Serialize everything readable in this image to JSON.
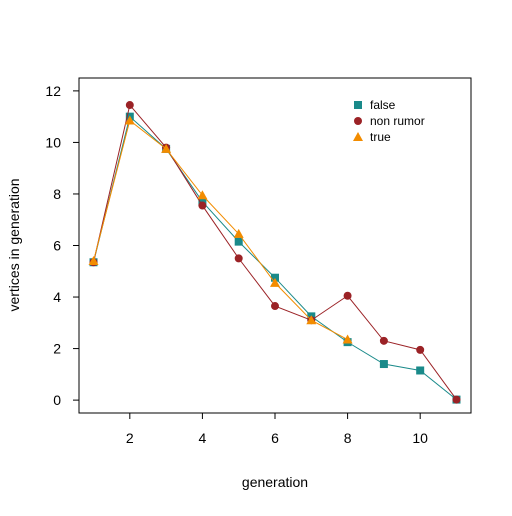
{
  "chart_data": {
    "type": "line",
    "xlabel": "generation",
    "ylabel": "vertices in generation",
    "xlim": [
      0.6,
      11.4
    ],
    "ylim": [
      -0.5,
      12.5
    ],
    "x_ticks": [
      "2",
      "4",
      "6",
      "8",
      "10"
    ],
    "x_tick_values": [
      2,
      4,
      6,
      8,
      10
    ],
    "y_ticks": [
      "0",
      "2",
      "4",
      "6",
      "8",
      "10",
      "12"
    ],
    "y_tick_values": [
      0,
      2,
      4,
      6,
      8,
      10,
      12
    ],
    "grid": false,
    "legend_position": "top-right",
    "series": [
      {
        "name": "false",
        "color": "#1a8a8a",
        "marker": "square",
        "x": [
          1,
          2,
          3,
          4,
          5,
          6,
          7,
          8,
          9,
          10,
          11
        ],
        "y": [
          5.35,
          11.0,
          9.75,
          7.7,
          6.15,
          4.75,
          3.25,
          2.25,
          1.4,
          1.15,
          0.02
        ]
      },
      {
        "name": "non rumor",
        "color": "#9b2226",
        "marker": "diamond",
        "x": [
          1,
          2,
          3,
          4,
          5,
          6,
          7,
          8,
          9,
          10,
          11
        ],
        "y": [
          5.35,
          11.45,
          9.8,
          7.55,
          5.5,
          3.65,
          3.1,
          4.05,
          2.3,
          1.95,
          0.02
        ]
      },
      {
        "name": "true",
        "color": "#f28c00",
        "marker": "triangle",
        "x": [
          1,
          2,
          3,
          4,
          5,
          6,
          7,
          8
        ],
        "y": [
          5.4,
          10.85,
          9.75,
          7.95,
          6.45,
          4.55,
          3.1,
          2.35
        ]
      }
    ]
  }
}
